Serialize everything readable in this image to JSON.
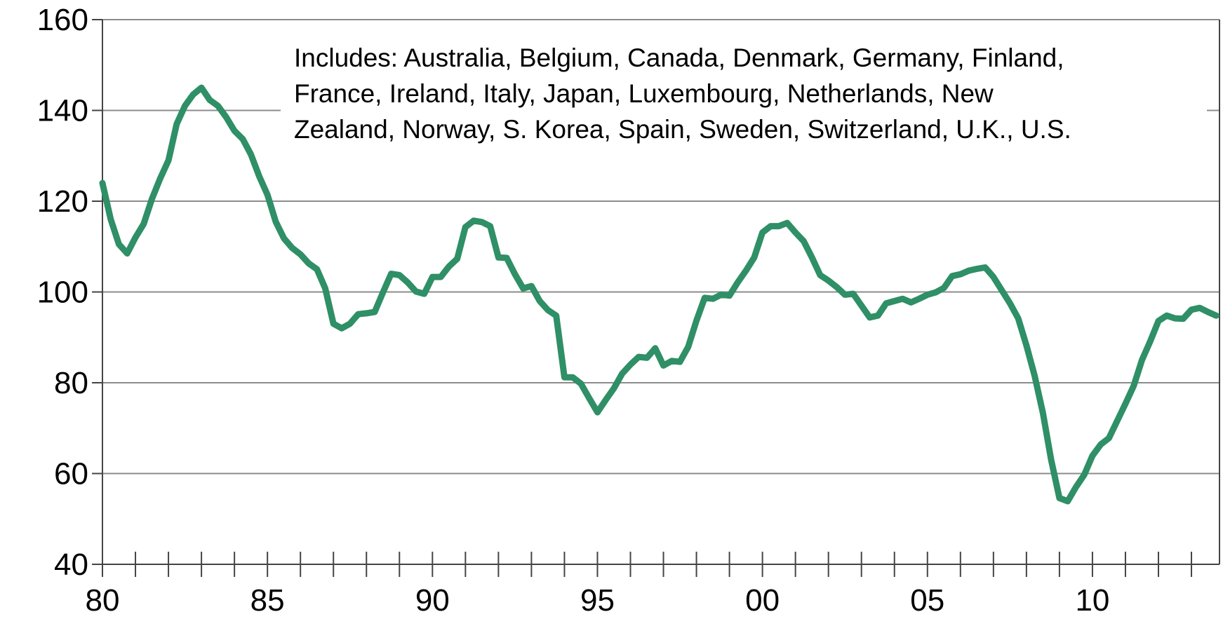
{
  "chart_data": {
    "type": "line",
    "annotation": [
      "Includes: Australia, Belgium, Canada, Denmark, Germany, Finland,",
      "France, Ireland, Italy, Japan, Luxembourg, Netherlands, New",
      "Zealand, Norway, S. Korea, Spain, Sweden, Switzerland, U.K., U.S."
    ],
    "x": [
      1980,
      1980.25,
      1980.5,
      1980.75,
      1981,
      1981.25,
      1981.5,
      1981.75,
      1982,
      1982.25,
      1982.5,
      1982.75,
      1983,
      1983.25,
      1983.5,
      1983.75,
      1984,
      1984.25,
      1984.5,
      1984.75,
      1985,
      1985.25,
      1985.5,
      1985.75,
      1986,
      1986.25,
      1986.5,
      1986.75,
      1987,
      1987.25,
      1987.5,
      1987.75,
      1988,
      1988.25,
      1988.5,
      1988.75,
      1989,
      1989.25,
      1989.5,
      1989.75,
      1990,
      1990.25,
      1990.5,
      1990.75,
      1991,
      1991.25,
      1991.5,
      1991.75,
      1992,
      1992.25,
      1992.5,
      1992.75,
      1993,
      1993.25,
      1993.5,
      1993.75,
      1994,
      1994.25,
      1994.5,
      1994.75,
      1995,
      1995.25,
      1995.5,
      1995.75,
      1996,
      1996.25,
      1996.5,
      1996.75,
      1997,
      1997.25,
      1997.5,
      1997.75,
      1998,
      1998.25,
      1998.5,
      1998.75,
      1999,
      1999.25,
      1999.5,
      1999.75,
      2000,
      2000.25,
      2000.5,
      2000.75,
      2001,
      2001.25,
      2001.5,
      2001.75,
      2002,
      2002.25,
      2002.5,
      2002.75,
      2003,
      2003.25,
      2003.5,
      2003.75,
      2004,
      2004.25,
      2004.5,
      2004.75,
      2005,
      2005.25,
      2005.5,
      2005.75,
      2006,
      2006.25,
      2006.5,
      2006.75,
      2007,
      2007.25,
      2007.5,
      2007.75,
      2008,
      2008.25,
      2008.5,
      2008.75,
      2009,
      2009.25,
      2009.5,
      2009.75,
      2010,
      2010.25,
      2010.5,
      2010.75,
      2011,
      2011.25,
      2011.5,
      2011.75,
      2012,
      2012.25,
      2012.5,
      2012.75,
      2013,
      2013.25,
      2013.5,
      2013.75
    ],
    "series": [
      {
        "color": "#2f8f66",
        "values": [
          124,
          116,
          110.5,
          108.5,
          112,
          115,
          120.5,
          125,
          129,
          137,
          141,
          143.5,
          145,
          142.3,
          141,
          138.5,
          135.5,
          133.7,
          130.3,
          125.5,
          121.4,
          115.5,
          111.8,
          109.7,
          108.3,
          106.3,
          105,
          100.8,
          93,
          92,
          93,
          95.1,
          95.3,
          95.6,
          99.9,
          104,
          103.7,
          102.1,
          100.1,
          99.6,
          103.3,
          103.3,
          105.6,
          107.3,
          114.3,
          115.7,
          115.4,
          114.5,
          107.6,
          107.5,
          103.9,
          100.8,
          101.3,
          98,
          96,
          94.8,
          81.2,
          81.2,
          79.8,
          76.6,
          73.5,
          76.2,
          78.8,
          82,
          84,
          85.7,
          85.5,
          87.6,
          83.8,
          84.8,
          84.6,
          87.9,
          93.7,
          98.7,
          98.5,
          99.4,
          99.2,
          102.1,
          104.7,
          107.6,
          113.1,
          114.5,
          114.5,
          115.2,
          113.1,
          111.2,
          107.6,
          103.7,
          102.5,
          101.1,
          99.4,
          99.6,
          97,
          94.4,
          94.8,
          97.5,
          98,
          98.5,
          97.7,
          98.5,
          99.4,
          99.9,
          100.9,
          103.5,
          103.9,
          104.7,
          105.1,
          105.4,
          103.3,
          100.4,
          97.5,
          94.2,
          88.2,
          81.5,
          73.3,
          63,
          54.6,
          53.9,
          57,
          59.7,
          63.9,
          66.4,
          67.8,
          71.6,
          75.4,
          79.3,
          85,
          89.1,
          93.6,
          94.8,
          94.2,
          94.1,
          96.1,
          96.5,
          95.6,
          94.8
        ]
      }
    ],
    "xlim": [
      1980,
      2013.85
    ],
    "xticks": [
      {
        "value": 1980,
        "label": "80"
      },
      {
        "value": 1985,
        "label": "85"
      },
      {
        "value": 1990,
        "label": "90"
      },
      {
        "value": 1995,
        "label": "95"
      },
      {
        "value": 2000,
        "label": "00"
      },
      {
        "value": 2005,
        "label": "05"
      },
      {
        "value": 2010,
        "label": "10"
      }
    ],
    "x_minor_ticks": [
      1981,
      1982,
      1983,
      1984,
      1986,
      1987,
      1988,
      1989,
      1991,
      1992,
      1993,
      1994,
      1996,
      1997,
      1998,
      1999,
      2001,
      2002,
      2003,
      2004,
      2006,
      2007,
      2008,
      2009,
      2011,
      2012,
      2013
    ],
    "ylim": [
      40,
      160
    ],
    "yticks": [
      40,
      60,
      80,
      100,
      120,
      140,
      160
    ],
    "grid": true
  }
}
